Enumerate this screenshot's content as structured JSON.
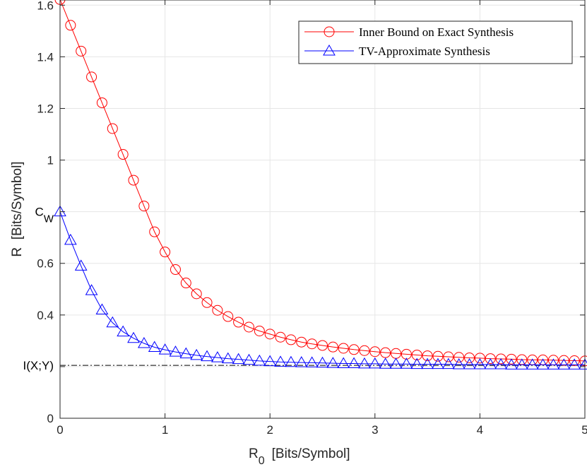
{
  "chart_data": {
    "type": "line",
    "xlabel": "R",
    "xlabel_sub": "0",
    "xlabel_unit": "[Bits/Symbol]",
    "ylabel": "R  [Bits/Symbol]",
    "xlim": [
      0,
      5
    ],
    "ylim": [
      0,
      1.62
    ],
    "grid": true,
    "legend_position": "top-right",
    "x_ticks": [
      {
        "value": 0,
        "label": "0"
      },
      {
        "value": 1,
        "label": "1"
      },
      {
        "value": 2,
        "label": "2"
      },
      {
        "value": 3,
        "label": "3"
      },
      {
        "value": 4,
        "label": "4"
      },
      {
        "value": 5,
        "label": "5"
      }
    ],
    "y_ticks": [
      {
        "value": 0,
        "label": "0"
      },
      {
        "value": 0.2,
        "label": ""
      },
      {
        "value": 0.4,
        "label": "0.4"
      },
      {
        "value": 0.6,
        "label": "0.6"
      },
      {
        "value": 0.8,
        "label": ""
      },
      {
        "value": 1.0,
        "label": "1"
      },
      {
        "value": 1.2,
        "label": "1.2"
      },
      {
        "value": 1.4,
        "label": "1.4"
      },
      {
        "value": 1.6,
        "label": "1.6"
      }
    ],
    "annotations": [
      {
        "value": 0.8,
        "label": "C",
        "sub": "W"
      },
      {
        "value": 0.205,
        "label": "I(X;Y)"
      }
    ],
    "reference_line": {
      "y": 0.205,
      "style": "dash-dot",
      "color": "#000000"
    },
    "series": [
      {
        "name": "Inner Bound on Exact Synthesis",
        "color": "#ff0000",
        "marker": "circle",
        "x": [
          0,
          0.1,
          0.2,
          0.3,
          0.4,
          0.5,
          0.6,
          0.7,
          0.8,
          0.9,
          1.0,
          1.1,
          1.2,
          1.3,
          1.4,
          1.5,
          1.6,
          1.7,
          1.8,
          1.9,
          2.0,
          2.1,
          2.2,
          2.3,
          2.4,
          2.5,
          2.6,
          2.7,
          2.8,
          2.9,
          3.0,
          3.1,
          3.2,
          3.3,
          3.4,
          3.5,
          3.6,
          3.7,
          3.8,
          3.9,
          4.0,
          4.1,
          4.2,
          4.3,
          4.4,
          4.5,
          4.6,
          4.7,
          4.8,
          4.9,
          5.0
        ],
        "y": [
          1.622,
          1.522,
          1.422,
          1.322,
          1.222,
          1.122,
          1.022,
          0.922,
          0.822,
          0.722,
          0.644,
          0.576,
          0.524,
          0.482,
          0.448,
          0.418,
          0.394,
          0.372,
          0.353,
          0.338,
          0.326,
          0.314,
          0.304,
          0.295,
          0.288,
          0.282,
          0.276,
          0.271,
          0.266,
          0.262,
          0.258,
          0.254,
          0.251,
          0.248,
          0.245,
          0.242,
          0.24,
          0.238,
          0.236,
          0.234,
          0.233,
          0.231,
          0.23,
          0.229,
          0.227,
          0.226,
          0.226,
          0.225,
          0.224,
          0.223,
          0.222
        ]
      },
      {
        "name": "TV-Approximate Synthesis",
        "color": "#0000ff",
        "marker": "triangle",
        "x": [
          0,
          0.1,
          0.2,
          0.3,
          0.4,
          0.5,
          0.6,
          0.7,
          0.8,
          0.9,
          1.0,
          1.1,
          1.2,
          1.3,
          1.4,
          1.5,
          1.6,
          1.7,
          1.8,
          1.9,
          2.0,
          2.1,
          2.2,
          2.3,
          2.4,
          2.5,
          2.6,
          2.7,
          2.8,
          2.9,
          3.0,
          3.1,
          3.2,
          3.3,
          3.4,
          3.5,
          3.6,
          3.7,
          3.8,
          3.9,
          4.0,
          4.1,
          4.2,
          4.3,
          4.4,
          4.5,
          4.6,
          4.7,
          4.8,
          4.9,
          5.0
        ],
        "y": [
          0.8,
          0.69,
          0.59,
          0.495,
          0.42,
          0.37,
          0.335,
          0.31,
          0.29,
          0.275,
          0.265,
          0.257,
          0.25,
          0.244,
          0.239,
          0.235,
          0.231,
          0.228,
          0.225,
          0.222,
          0.22,
          0.218,
          0.217,
          0.216,
          0.215,
          0.214,
          0.213,
          0.212,
          0.212,
          0.211,
          0.211,
          0.21,
          0.21,
          0.21,
          0.209,
          0.209,
          0.209,
          0.209,
          0.208,
          0.208,
          0.208,
          0.208,
          0.208,
          0.207,
          0.207,
          0.207,
          0.207,
          0.207,
          0.207,
          0.207,
          0.207
        ]
      }
    ]
  }
}
